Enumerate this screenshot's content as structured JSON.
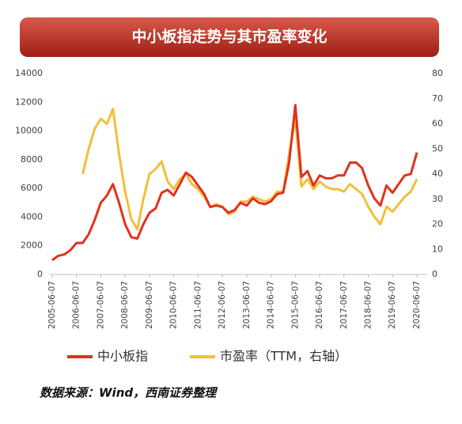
{
  "chart_data": {
    "type": "line",
    "title": "中小板指走势与其市盈率变化",
    "source": "数据来源：Wind，西南证券整理",
    "x": [
      "2005-06-07",
      "2005-09-07",
      "2005-12-07",
      "2006-03-07",
      "2006-06-07",
      "2006-09-07",
      "2006-12-07",
      "2007-03-07",
      "2007-06-07",
      "2007-09-07",
      "2007-12-07",
      "2008-03-07",
      "2008-06-07",
      "2008-09-07",
      "2008-12-07",
      "2009-03-07",
      "2009-06-07",
      "2009-09-07",
      "2009-12-07",
      "2010-03-07",
      "2010-06-07",
      "2010-09-07",
      "2010-12-07",
      "2011-03-07",
      "2011-06-07",
      "2011-09-07",
      "2011-12-07",
      "2012-03-07",
      "2012-06-07",
      "2012-09-07",
      "2012-12-07",
      "2013-03-07",
      "2013-06-07",
      "2013-09-07",
      "2013-12-07",
      "2014-03-07",
      "2014-06-07",
      "2014-09-07",
      "2014-12-07",
      "2015-03-07",
      "2015-06-07",
      "2015-09-07",
      "2015-12-07",
      "2016-03-07",
      "2016-06-07",
      "2016-09-07",
      "2016-12-07",
      "2017-03-07",
      "2017-06-07",
      "2017-09-07",
      "2017-12-07",
      "2018-03-07",
      "2018-06-07",
      "2018-09-07",
      "2018-12-07",
      "2019-03-07",
      "2019-06-07",
      "2019-09-07",
      "2019-12-07",
      "2020-03-07",
      "2020-06-07"
    ],
    "series": [
      {
        "name": "中小板指",
        "color": "#e0321e",
        "values": [
          1000,
          1300,
          1400,
          1700,
          2200,
          2200,
          2800,
          3800,
          5000,
          5500,
          6300,
          5000,
          3500,
          2600,
          2500,
          3500,
          4300,
          4600,
          5700,
          5900,
          5500,
          6300,
          7100,
          6800,
          6200,
          5600,
          4700,
          4800,
          4700,
          4300,
          4500,
          5000,
          4800,
          5300,
          5000,
          4900,
          5100,
          5600,
          5700,
          7800,
          11800,
          6800,
          7200,
          6200,
          6900,
          6700,
          6700,
          6900,
          6900,
          7800,
          7800,
          7400,
          6200,
          5300,
          4800,
          6200,
          5700,
          6300,
          6900,
          7000,
          8500
        ]
      },
      {
        "name": "市盈率（TTM，右轴）",
        "color": "#f5bd3a",
        "axis": "y2",
        "values": [
          null,
          null,
          null,
          null,
          null,
          40,
          50,
          58,
          62,
          60,
          66,
          48,
          33,
          22,
          18,
          30,
          40,
          42,
          45,
          37,
          34,
          38,
          40,
          36,
          34,
          31,
          27,
          28,
          27,
          24,
          25,
          29,
          29,
          31,
          30,
          29,
          30,
          33,
          33,
          48,
          62,
          35,
          38,
          34,
          37,
          35,
          34,
          34,
          33,
          36,
          34,
          32,
          27,
          23,
          20,
          27,
          25,
          28,
          31,
          33,
          38
        ]
      }
    ],
    "xticks": [
      "2005-06-07",
      "2006-06-07",
      "2007-06-07",
      "2008-06-07",
      "2009-06-07",
      "2010-06-07",
      "2011-06-07",
      "2012-06-07",
      "2013-06-07",
      "2014-06-07",
      "2015-06-07",
      "2016-06-07",
      "2017-06-07",
      "2018-06-07",
      "2019-06-07",
      "2020-06-07"
    ],
    "ylim": [
      0,
      14000
    ],
    "yticks": [
      0,
      2000,
      4000,
      6000,
      8000,
      10000,
      12000,
      14000
    ],
    "y2lim": [
      0,
      80
    ],
    "y2ticks": [
      0,
      10,
      20,
      30,
      40,
      50,
      60,
      70,
      80
    ],
    "legend": "bottom"
  }
}
